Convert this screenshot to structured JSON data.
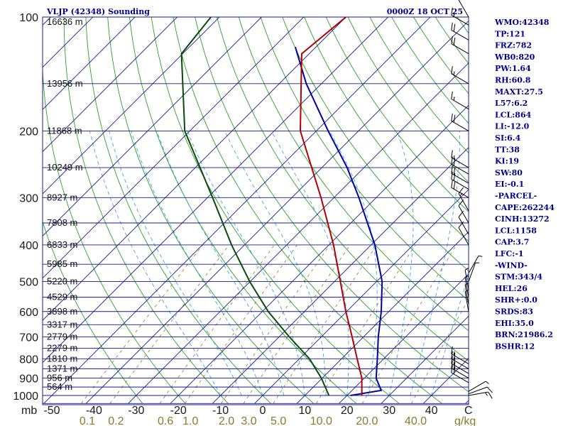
{
  "chart_data": {
    "type": "skew-t",
    "title": "VLJP (42348) Sounding",
    "time_label": "0000Z 18 OCT 25",
    "pressure_ticks": [
      100,
      200,
      300,
      400,
      500,
      600,
      700,
      800,
      900,
      1000
    ],
    "pressure_unit": "mb",
    "temperature_ticks": [
      -50,
      -40,
      -30,
      -20,
      -10,
      0,
      10,
      20,
      30,
      40
    ],
    "temperature_axis_end_label": "C",
    "mixing_ratio_ticks": [
      "0.1",
      "0.2",
      "0.6",
      "1.0",
      "2.0",
      "3.0",
      "5.0",
      "10.0",
      "20.0",
      "40.0"
    ],
    "mixing_ratio_positions": [
      0.1,
      0.2,
      0.6,
      1.0,
      2.0,
      3.0,
      5.0,
      10.0,
      20.0,
      40.0
    ],
    "mixing_ratio_unit": "g/kg",
    "height_levels": [
      {
        "p": 103,
        "label": "16636 m"
      },
      {
        "p": 150,
        "label": "13956 m"
      },
      {
        "p": 200,
        "label": "11868 m"
      },
      {
        "p": 250,
        "label": "10249 m"
      },
      {
        "p": 300,
        "label": "8927 m"
      },
      {
        "p": 350,
        "label": "7808 m"
      },
      {
        "p": 400,
        "label": "6833 m"
      },
      {
        "p": 450,
        "label": "5985 m"
      },
      {
        "p": 500,
        "label": "5220 m"
      },
      {
        "p": 550,
        "label": "4529 m"
      },
      {
        "p": 600,
        "label": "3898 m"
      },
      {
        "p": 650,
        "label": "3317 m"
      },
      {
        "p": 700,
        "label": "2779 m"
      },
      {
        "p": 750,
        "label": "2279 m"
      },
      {
        "p": 800,
        "label": "1810 m"
      },
      {
        "p": 850,
        "label": "1371 m"
      },
      {
        "p": 900,
        "label": "956 m"
      },
      {
        "p": 950,
        "label": "564 m"
      }
    ],
    "temperature_profile": [
      {
        "p": 1000,
        "t": 23.5
      },
      {
        "p": 900,
        "t": 19.4
      },
      {
        "p": 800,
        "t": 13.7
      },
      {
        "p": 700,
        "t": 7.3
      },
      {
        "p": 600,
        "t": -0.2
      },
      {
        "p": 500,
        "t": -8.6
      },
      {
        "p": 400,
        "t": -18.9
      },
      {
        "p": 300,
        "t": -33.1
      },
      {
        "p": 200,
        "t": -53.8
      },
      {
        "p": 125,
        "t": -71.8
      },
      {
        "p": 100,
        "t": -70.0
      }
    ],
    "dewpoint_profile": [
      {
        "p": 1000,
        "t": 15.7
      },
      {
        "p": 900,
        "t": 9.8
      },
      {
        "p": 800,
        "t": 2.4
      },
      {
        "p": 700,
        "t": -7.6
      },
      {
        "p": 600,
        "t": -18.6
      },
      {
        "p": 500,
        "t": -30.1
      },
      {
        "p": 400,
        "t": -43.1
      },
      {
        "p": 300,
        "t": -58.8
      },
      {
        "p": 200,
        "t": -81.2
      },
      {
        "p": 125,
        "t": -100.3
      },
      {
        "p": 100,
        "t": -102.0
      }
    ],
    "parcel_profile": [
      {
        "p": 1000,
        "t": 20.8
      },
      {
        "p": 970,
        "t": 26.9
      },
      {
        "p": 900,
        "t": 22.8
      },
      {
        "p": 800,
        "t": 18.5
      },
      {
        "p": 700,
        "t": 13.5
      },
      {
        "p": 600,
        "t": 8.2
      },
      {
        "p": 500,
        "t": 1.3
      },
      {
        "p": 400,
        "t": -9.1
      },
      {
        "p": 300,
        "t": -24.1
      },
      {
        "p": 250,
        "t": -34.0
      },
      {
        "p": 200,
        "t": -47.2
      },
      {
        "p": 150,
        "t": -63.6
      },
      {
        "p": 120,
        "t": -74.9
      }
    ],
    "wind_barbs": [
      {
        "p": 1000,
        "dir": 80,
        "spd": 15
      },
      {
        "p": 990,
        "dir": 70,
        "spd": 10
      },
      {
        "p": 975,
        "dir": 60,
        "spd": 5
      },
      {
        "p": 925,
        "dir": 300,
        "spd": 20
      },
      {
        "p": 900,
        "dir": 300,
        "spd": 20
      },
      {
        "p": 875,
        "dir": 300,
        "spd": 20
      },
      {
        "p": 850,
        "dir": 300,
        "spd": 20
      },
      {
        "p": 825,
        "dir": 300,
        "spd": 15
      },
      {
        "p": 600,
        "dir": 350,
        "spd": 5
      },
      {
        "p": 575,
        "dir": 350,
        "spd": 5
      },
      {
        "p": 550,
        "dir": 350,
        "spd": 5
      },
      {
        "p": 525,
        "dir": 350,
        "spd": 5
      },
      {
        "p": 500,
        "dir": 20,
        "spd": 5
      },
      {
        "p": 475,
        "dir": 30,
        "spd": 5
      },
      {
        "p": 400,
        "dir": 330,
        "spd": 10
      },
      {
        "p": 375,
        "dir": 330,
        "spd": 10
      },
      {
        "p": 350,
        "dir": 330,
        "spd": 10
      },
      {
        "p": 325,
        "dir": 330,
        "spd": 15
      },
      {
        "p": 300,
        "dir": 300,
        "spd": 20
      },
      {
        "p": 285,
        "dir": 300,
        "spd": 20
      },
      {
        "p": 275,
        "dir": 300,
        "spd": 20
      },
      {
        "p": 260,
        "dir": 300,
        "spd": 20
      },
      {
        "p": 250,
        "dir": 300,
        "spd": 15
      },
      {
        "p": 200,
        "dir": 300,
        "spd": 20
      },
      {
        "p": 175,
        "dir": 300,
        "spd": 15
      },
      {
        "p": 150,
        "dir": 300,
        "spd": 15
      },
      {
        "p": 125,
        "dir": 300,
        "spd": 20
      },
      {
        "p": 115,
        "dir": 300,
        "spd": 20
      },
      {
        "p": 105,
        "dir": 300,
        "spd": 15
      },
      {
        "p": 100,
        "dir": 330,
        "spd": 10
      }
    ],
    "colors": {
      "isobar": "#1a1a8c",
      "isotherm": "#1a1a8c",
      "dry_adiabat": "#2aa02a",
      "moist_adiabat": "#3fa7d6",
      "mixing_ratio": "#8a7a2a",
      "temperature": "#b00000",
      "dewpoint": "#0a4a0a",
      "parcel": "#0000a0",
      "text": "#00008b",
      "axis_text": "#1a1a1a"
    }
  },
  "indices": [
    "WMO:42348",
    "TP:121",
    "FRZ:782",
    "WB0:820",
    "PW:1.64",
    "RH:60.8",
    "MAXT:27.5",
    "L57:6.2",
    "LCL:864",
    "LI:-12.0",
    "SI:6.4",
    "TT:38",
    "KI:19",
    "SW:80",
    "EI:-0.1",
    "-PARCEL-",
    "CAPE:262244",
    "CINH:13272",
    "LCL:1158",
    "CAP:3.7",
    "LFC:-1",
    "-WIND-",
    "STM:343/4",
    "HEL:26",
    "SHR+:0.0",
    "SRDS:83",
    "EHI:35.0",
    "BRN:21986.2",
    "BSHR:12"
  ]
}
